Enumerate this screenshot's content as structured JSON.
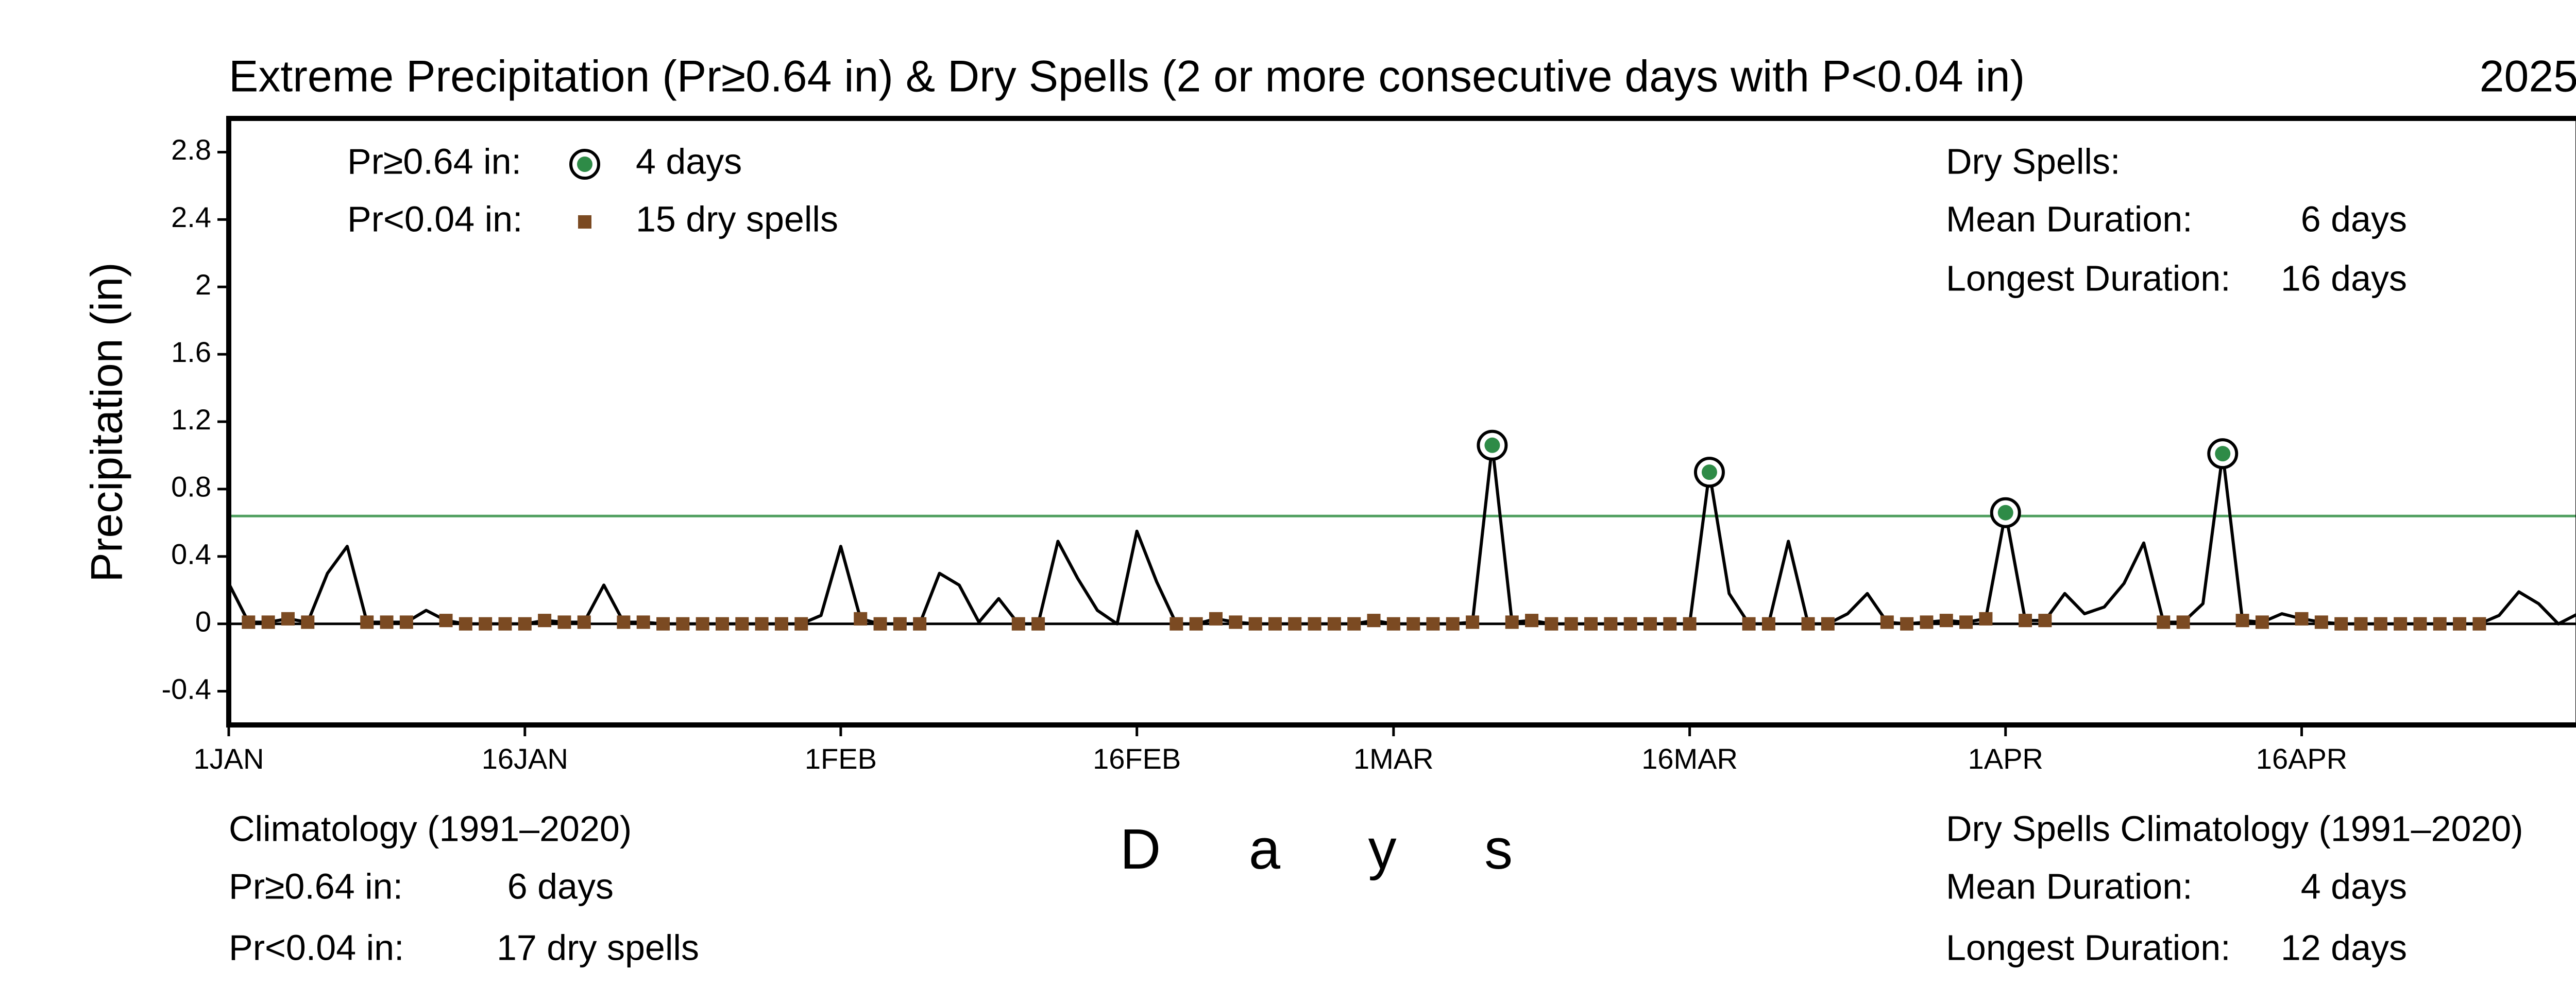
{
  "chart_data": {
    "type": "line",
    "title": "Extreme Precipitation (Pr≥0.64 in) & Dry Spells (2 or more consecutive days with P<0.04 in)",
    "year": "2025",
    "y_label": "Precipitation (in)",
    "x_label": "D a y s",
    "categories": [
      "1JAN",
      null,
      null,
      null,
      null,
      null,
      null,
      null,
      null,
      null,
      null,
      null,
      null,
      null,
      null,
      "16JAN",
      null,
      null,
      null,
      null,
      null,
      null,
      null,
      null,
      null,
      null,
      null,
      null,
      null,
      null,
      null,
      "1FEB",
      null,
      null,
      null,
      null,
      null,
      null,
      null,
      null,
      null,
      null,
      null,
      null,
      null,
      null,
      "16FEB",
      null,
      null,
      null,
      null,
      null,
      null,
      null,
      null,
      null,
      null,
      null,
      null,
      "1MAR",
      null,
      null,
      null,
      null,
      null,
      null,
      null,
      null,
      null,
      null,
      null,
      null,
      null,
      null,
      "16MAR",
      null,
      null,
      null,
      null,
      null,
      null,
      null,
      null,
      null,
      null,
      null,
      null,
      null,
      null,
      null,
      "1APR",
      null,
      null,
      null,
      null,
      null,
      null,
      null,
      null,
      null,
      null,
      null,
      null,
      null,
      null,
      "16APR",
      null,
      null,
      null,
      null,
      null,
      null,
      null,
      null,
      null,
      null,
      null,
      null,
      null,
      null
    ],
    "values": [
      0.24,
      0.01,
      0.01,
      0.03,
      0.01,
      0.3,
      0.46,
      0.01,
      0.01,
      0.01,
      0.08,
      0.02,
      0,
      0,
      0,
      0,
      0.02,
      0.01,
      0.01,
      0.23,
      0.01,
      0.01,
      0,
      0,
      0,
      0,
      0,
      0,
      0,
      0,
      0.05,
      0.46,
      0.03,
      0,
      0,
      0,
      0.3,
      0.23,
      0.01,
      0.15,
      0,
      0,
      0.49,
      0.27,
      0.08,
      0,
      0.55,
      0.25,
      0,
      0,
      0.03,
      0.01,
      0,
      0,
      0,
      0,
      0,
      0,
      0.02,
      0,
      0,
      0,
      0,
      0.01,
      1.06,
      0.01,
      0.02,
      0,
      0,
      0,
      0,
      0,
      0,
      0,
      0,
      0.9,
      0.18,
      0,
      0,
      0.49,
      0,
      0,
      0.06,
      0.18,
      0.01,
      0,
      0.01,
      0.02,
      0.01,
      0.03,
      0.66,
      0.02,
      0.02,
      0.18,
      0.06,
      0.1,
      0.24,
      0.48,
      0.01,
      0.01,
      0.12,
      1.01,
      0.02,
      0.01,
      0.06,
      0.03,
      0.01,
      0,
      0,
      0,
      0,
      0,
      0,
      0,
      0,
      0.05,
      0.19,
      0.12,
      0,
      0.06
    ],
    "color": "#000000",
    "threshold": 0.64,
    "threshold_color": "#4f9f5f",
    "extreme_color": "#2e8b47",
    "dry_threshold": 0.04,
    "dry_min_days": 2,
    "dry_color": "#7b4a22",
    "ylim": [
      -0.6,
      3.0
    ],
    "yticks": [
      -0.4,
      0,
      0.4,
      0.8,
      1.2,
      1.6,
      2,
      2.4,
      2.8
    ],
    "legend": [
      {
        "label": "Pr≥0.64 in:",
        "text": "4 days"
      },
      {
        "label": "Pr<0.04 in:",
        "text": "15 dry spells"
      }
    ],
    "dry_spells": {
      "title": "Dry Spells:",
      "rows": [
        [
          "Mean Duration:",
          "6 days"
        ],
        [
          "Longest Duration:",
          "16 days"
        ]
      ]
    },
    "climatology": {
      "title": "Climatology (1991–2020)",
      "rows": [
        [
          "Pr≥0.64 in:",
          "6 days"
        ],
        [
          "Pr<0.04 in:",
          "17 dry spells"
        ]
      ]
    },
    "dry_climatology": {
      "title": "Dry Spells Climatology (1991–2020)",
      "rows": [
        [
          "Mean Duration:",
          "4 days"
        ],
        [
          "Longest Duration:",
          "12 days"
        ]
      ]
    }
  }
}
